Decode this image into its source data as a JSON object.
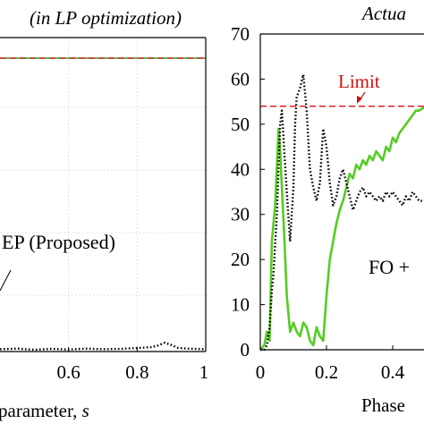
{
  "chart_data": [
    {
      "type": "line",
      "title": "(in LP optimization)",
      "xlabel": "parameter, s",
      "ylabel": "",
      "xlim": [
        0.4,
        1.0
      ],
      "xticks": [
        "0.6",
        "0.8",
        "1"
      ],
      "grid": true,
      "annotations": [
        "EP (Proposed)"
      ],
      "series": [
        {
          "name": "",
          "color": "#22aa22",
          "style": "solid",
          "x": [
            0.4,
            1.0
          ],
          "y": [
            1.0,
            1.0
          ]
        },
        {
          "name": "",
          "color": "#dd2222",
          "style": "dashed",
          "x": [
            0.4,
            1.0
          ],
          "y": [
            1.0,
            1.0
          ]
        },
        {
          "name": "EP (Proposed)",
          "color": "#000000",
          "style": "dotted",
          "x": [
            0.4,
            0.45,
            0.5,
            0.55,
            0.6,
            0.65,
            0.7,
            0.75,
            0.8,
            0.84,
            0.86,
            0.88,
            0.9,
            0.92,
            0.95,
            1.0
          ],
          "y": [
            0.008,
            0.01,
            0.006,
            0.009,
            0.007,
            0.01,
            0.008,
            0.009,
            0.012,
            0.015,
            0.02,
            0.03,
            0.022,
            0.012,
            0.01,
            0.008
          ]
        }
      ]
    },
    {
      "type": "line",
      "title": "Actua",
      "xlabel": "Phase",
      "ylabel": "",
      "xlim": [
        0,
        0.5
      ],
      "ylim": [
        0,
        70
      ],
      "xticks": [
        "0",
        "0.2",
        "0.4"
      ],
      "yticks": [
        "0",
        "10",
        "20",
        "30",
        "40",
        "50",
        "60",
        "70"
      ],
      "grid": false,
      "annotations": [
        "Limit",
        "FO +"
      ],
      "series": [
        {
          "name": "Limit",
          "color": "#dd2222",
          "style": "dashed",
          "x": [
            0,
            0.5
          ],
          "y": [
            54,
            54
          ]
        },
        {
          "name": "",
          "color": "#55cc22",
          "style": "solid",
          "x": [
            0,
            0.012,
            0.02,
            0.028,
            0.035,
            0.045,
            0.055,
            0.06,
            0.065,
            0.072,
            0.08,
            0.09,
            0.1,
            0.11,
            0.12,
            0.13,
            0.14,
            0.15,
            0.16,
            0.17,
            0.18,
            0.19,
            0.2,
            0.21,
            0.22,
            0.23,
            0.24,
            0.25,
            0.26,
            0.27,
            0.28,
            0.29,
            0.3,
            0.31,
            0.32,
            0.33,
            0.34,
            0.35,
            0.36,
            0.37,
            0.38,
            0.39,
            0.4,
            0.41,
            0.42,
            0.43,
            0.44,
            0.45,
            0.46,
            0.47,
            0.48,
            0.5
          ],
          "y": [
            0,
            1,
            4,
            2,
            24,
            32,
            49,
            44,
            36,
            26,
            12,
            4,
            6,
            4,
            3,
            6,
            5,
            2,
            1,
            5,
            3,
            2,
            12,
            20,
            24,
            28,
            31,
            33,
            36,
            39,
            38,
            41,
            40,
            42,
            41,
            43,
            42,
            44,
            43,
            42,
            45,
            44,
            47,
            46,
            48,
            49,
            50,
            51,
            52,
            53,
            53,
            54
          ]
        },
        {
          "name": "",
          "color": "#000000",
          "style": "dotted",
          "x": [
            0,
            0.012,
            0.02,
            0.028,
            0.035,
            0.04,
            0.05,
            0.06,
            0.065,
            0.07,
            0.08,
            0.09,
            0.1,
            0.105,
            0.11,
            0.12,
            0.13,
            0.14,
            0.15,
            0.16,
            0.17,
            0.18,
            0.19,
            0.2,
            0.21,
            0.22,
            0.23,
            0.24,
            0.25,
            0.26,
            0.27,
            0.28,
            0.29,
            0.3,
            0.31,
            0.32,
            0.33,
            0.34,
            0.35,
            0.36,
            0.37,
            0.38,
            0.39,
            0.4,
            0.41,
            0.42,
            0.43,
            0.44,
            0.45,
            0.46,
            0.47,
            0.48,
            0.5
          ],
          "y": [
            0,
            0,
            1,
            5,
            13,
            17,
            30,
            50,
            53,
            47,
            35,
            24,
            36,
            50,
            56,
            58,
            61,
            53,
            40,
            36,
            33,
            37,
            49,
            45,
            37,
            32,
            34,
            38,
            40,
            37,
            34,
            31,
            33,
            35,
            36,
            34,
            35,
            34,
            33,
            34,
            33,
            35,
            34,
            35,
            34,
            33,
            32,
            34,
            33,
            35,
            34,
            33,
            33
          ]
        }
      ]
    }
  ]
}
